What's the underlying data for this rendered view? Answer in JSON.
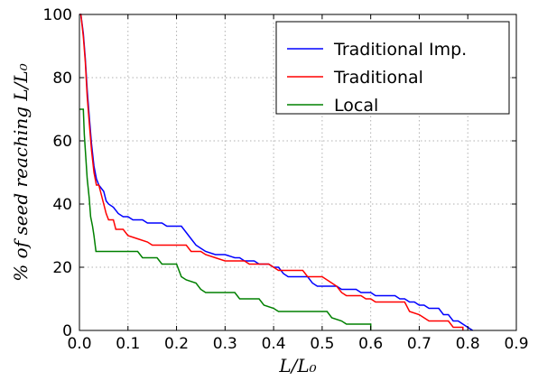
{
  "chart_data": {
    "type": "line",
    "xlabel": "L/L₀",
    "ylabel": "% of seed reaching L/L₀",
    "xlim": [
      0,
      0.9
    ],
    "ylim": [
      0,
      100
    ],
    "x_ticks": [
      "0.0",
      "0.1",
      "0.2",
      "0.3",
      "0.4",
      "0.5",
      "0.6",
      "0.7",
      "0.8",
      "0.9"
    ],
    "y_ticks": [
      "0",
      "20",
      "40",
      "60",
      "80",
      "100"
    ],
    "grid": true,
    "legend_position": "top-right",
    "series": [
      {
        "name": "Traditional Imp.",
        "color": "#0000ff",
        "points": [
          [
            0.0,
            100
          ],
          [
            0.003,
            100
          ],
          [
            0.008,
            94
          ],
          [
            0.012,
            86
          ],
          [
            0.016,
            76
          ],
          [
            0.02,
            68
          ],
          [
            0.025,
            59
          ],
          [
            0.03,
            52
          ],
          [
            0.035,
            48
          ],
          [
            0.04,
            46
          ],
          [
            0.05,
            44
          ],
          [
            0.055,
            41
          ],
          [
            0.06,
            40
          ],
          [
            0.07,
            39
          ],
          [
            0.08,
            37
          ],
          [
            0.09,
            36
          ],
          [
            0.1,
            36
          ],
          [
            0.11,
            35
          ],
          [
            0.13,
            35
          ],
          [
            0.14,
            34
          ],
          [
            0.17,
            34
          ],
          [
            0.18,
            33
          ],
          [
            0.21,
            33
          ],
          [
            0.22,
            31
          ],
          [
            0.23,
            29
          ],
          [
            0.24,
            27
          ],
          [
            0.25,
            26
          ],
          [
            0.26,
            25
          ],
          [
            0.28,
            24
          ],
          [
            0.3,
            24
          ],
          [
            0.32,
            23
          ],
          [
            0.33,
            23
          ],
          [
            0.34,
            22
          ],
          [
            0.36,
            22
          ],
          [
            0.37,
            21
          ],
          [
            0.39,
            21
          ],
          [
            0.4,
            20
          ],
          [
            0.41,
            20
          ],
          [
            0.42,
            18
          ],
          [
            0.43,
            17
          ],
          [
            0.47,
            17
          ],
          [
            0.48,
            15
          ],
          [
            0.49,
            14
          ],
          [
            0.53,
            14
          ],
          [
            0.54,
            13
          ],
          [
            0.57,
            13
          ],
          [
            0.58,
            12
          ],
          [
            0.6,
            12
          ],
          [
            0.61,
            11
          ],
          [
            0.65,
            11
          ],
          [
            0.66,
            10
          ],
          [
            0.67,
            10
          ],
          [
            0.68,
            9
          ],
          [
            0.69,
            9
          ],
          [
            0.7,
            8
          ],
          [
            0.71,
            8
          ],
          [
            0.72,
            7
          ],
          [
            0.74,
            7
          ],
          [
            0.75,
            5
          ],
          [
            0.76,
            5
          ],
          [
            0.77,
            3
          ],
          [
            0.78,
            3
          ],
          [
            0.79,
            2
          ],
          [
            0.8,
            1
          ],
          [
            0.81,
            0
          ]
        ]
      },
      {
        "name": "Traditional",
        "color": "#ff0000",
        "points": [
          [
            0.0,
            100
          ],
          [
            0.003,
            100
          ],
          [
            0.008,
            93
          ],
          [
            0.012,
            85
          ],
          [
            0.016,
            74
          ],
          [
            0.02,
            66
          ],
          [
            0.025,
            57
          ],
          [
            0.03,
            50
          ],
          [
            0.035,
            46
          ],
          [
            0.04,
            46
          ],
          [
            0.045,
            43
          ],
          [
            0.05,
            40
          ],
          [
            0.055,
            37
          ],
          [
            0.06,
            35
          ],
          [
            0.07,
            35
          ],
          [
            0.075,
            32
          ],
          [
            0.09,
            32
          ],
          [
            0.1,
            30
          ],
          [
            0.12,
            29
          ],
          [
            0.14,
            28
          ],
          [
            0.15,
            27
          ],
          [
            0.21,
            27
          ],
          [
            0.22,
            27
          ],
          [
            0.23,
            25
          ],
          [
            0.25,
            25
          ],
          [
            0.26,
            24
          ],
          [
            0.28,
            23
          ],
          [
            0.3,
            22
          ],
          [
            0.34,
            22
          ],
          [
            0.35,
            21
          ],
          [
            0.37,
            21
          ],
          [
            0.38,
            21
          ],
          [
            0.39,
            21
          ],
          [
            0.4,
            20
          ],
          [
            0.41,
            19
          ],
          [
            0.46,
            19
          ],
          [
            0.47,
            17
          ],
          [
            0.5,
            17
          ],
          [
            0.51,
            16
          ],
          [
            0.52,
            15
          ],
          [
            0.53,
            14
          ],
          [
            0.54,
            12
          ],
          [
            0.55,
            11
          ],
          [
            0.58,
            11
          ],
          [
            0.59,
            10
          ],
          [
            0.6,
            10
          ],
          [
            0.61,
            9
          ],
          [
            0.67,
            9
          ],
          [
            0.68,
            6
          ],
          [
            0.7,
            5
          ],
          [
            0.71,
            4
          ],
          [
            0.72,
            3
          ],
          [
            0.76,
            3
          ],
          [
            0.77,
            1
          ],
          [
            0.79,
            1
          ],
          [
            0.79,
            0
          ]
        ]
      },
      {
        "name": "Local",
        "color": "#008000",
        "points": [
          [
            0.0,
            70
          ],
          [
            0.008,
            70
          ],
          [
            0.01,
            62
          ],
          [
            0.013,
            55
          ],
          [
            0.016,
            48
          ],
          [
            0.02,
            42
          ],
          [
            0.023,
            36
          ],
          [
            0.027,
            33
          ],
          [
            0.03,
            30
          ],
          [
            0.034,
            25
          ],
          [
            0.05,
            25
          ],
          [
            0.12,
            25
          ],
          [
            0.13,
            23
          ],
          [
            0.16,
            23
          ],
          [
            0.17,
            21
          ],
          [
            0.2,
            21
          ],
          [
            0.21,
            17
          ],
          [
            0.22,
            16
          ],
          [
            0.24,
            15
          ],
          [
            0.25,
            13
          ],
          [
            0.26,
            12
          ],
          [
            0.32,
            12
          ],
          [
            0.33,
            10
          ],
          [
            0.37,
            10
          ],
          [
            0.38,
            8
          ],
          [
            0.4,
            7
          ],
          [
            0.41,
            6
          ],
          [
            0.51,
            6
          ],
          [
            0.52,
            4
          ],
          [
            0.54,
            3
          ],
          [
            0.55,
            2
          ],
          [
            0.6,
            2
          ],
          [
            0.6,
            0
          ]
        ]
      }
    ]
  }
}
